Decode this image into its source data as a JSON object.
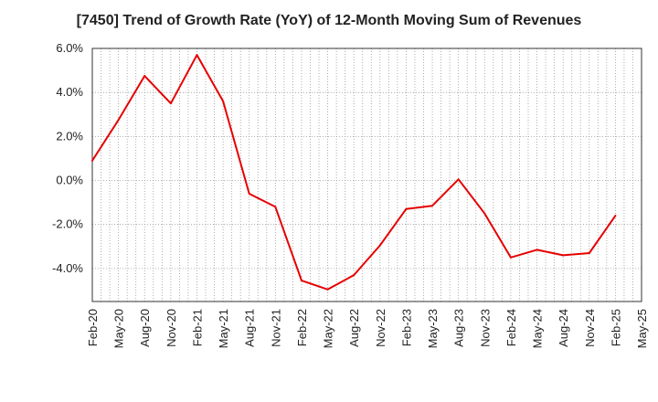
{
  "chart_data": {
    "type": "line",
    "title": "[7450]  Trend of Growth Rate (YoY) of 12-Month Moving Sum of Revenues",
    "xlabel": "",
    "ylabel": "",
    "x_tick_labels": [
      "Feb-20",
      "May-20",
      "Aug-20",
      "Nov-20",
      "Feb-21",
      "May-21",
      "Aug-21",
      "Nov-21",
      "Feb-22",
      "May-22",
      "Aug-22",
      "Nov-22",
      "Feb-23",
      "May-23",
      "Aug-23",
      "Nov-23",
      "Feb-24",
      "May-24",
      "Aug-24",
      "Nov-24",
      "Feb-25",
      "May-25"
    ],
    "y_ticks": [
      6.0,
      4.0,
      2.0,
      0.0,
      -2.0,
      -4.0
    ],
    "y_tick_labels": [
      "6.0%",
      "4.0%",
      "2.0%",
      "0.0%",
      "-2.0%",
      "-4.0%"
    ],
    "ylim": [
      -5.5,
      6.0
    ],
    "grid": true,
    "series": [
      {
        "color": "#e60000",
        "x": [
          "Feb-20",
          "May-20",
          "Aug-20",
          "Nov-20",
          "Feb-21",
          "May-21",
          "Aug-21",
          "Nov-21",
          "Feb-22",
          "May-22",
          "Aug-22",
          "Nov-22",
          "Feb-23",
          "May-23",
          "Aug-23",
          "Nov-23",
          "Feb-24",
          "May-24",
          "Aug-24",
          "Nov-24",
          "Feb-25"
        ],
        "values": [
          0.9,
          2.75,
          4.75,
          3.5,
          5.7,
          3.6,
          -0.6,
          -1.2,
          -4.55,
          -4.95,
          -4.3,
          -2.95,
          -1.3,
          -1.15,
          0.05,
          -1.5,
          -3.5,
          -3.15,
          -3.4,
          -3.3,
          -1.6
        ]
      }
    ]
  }
}
